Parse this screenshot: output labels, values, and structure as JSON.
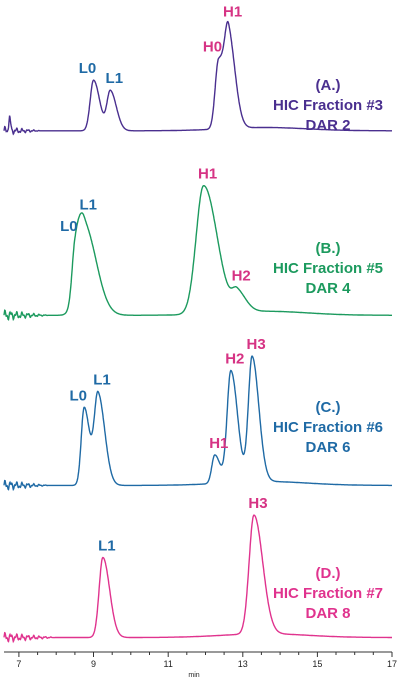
{
  "chart_data": {
    "type": "line",
    "x_axis": {
      "label": "min",
      "range": [
        6.6,
        17
      ],
      "ticks": [
        7,
        9,
        11,
        13,
        15,
        17
      ]
    },
    "series": [
      {
        "name": "(A.) HIC Fraction #3 DAR 2",
        "color": "#4a2f8f",
        "caption": [
          "(A.)",
          "HIC Fraction #3",
          "DAR 2"
        ],
        "baseline": 0.02,
        "noise_end": 7.6,
        "peaks": [
          {
            "label": "L0",
            "label_color": "#1f6aa5",
            "x": 9.0,
            "height": 0.46,
            "width": 0.09
          },
          {
            "label": "L1",
            "label_color": "#1f6aa5",
            "x": 9.45,
            "height": 0.36,
            "width": 0.09
          },
          {
            "label": "H0",
            "label_color": "#d63384",
            "x": 12.35,
            "height": 0.62,
            "width": 0.09
          },
          {
            "label": "H1",
            "label_color": "#d63384",
            "x": 12.62,
            "height": 0.8,
            "width": 0.1
          }
        ]
      },
      {
        "name": "(B.) HIC Fraction #5 DAR 4",
        "color": "#1c9a5e",
        "caption": [
          "(B.)",
          "HIC Fraction #5",
          "DAR 4"
        ],
        "baseline": 0.02,
        "noise_end": 7.8,
        "peaks": [
          {
            "label": "L0",
            "label_color": "#1f6aa5",
            "x": 8.5,
            "height": 0.32,
            "width": 0.08
          },
          {
            "label": "L1",
            "label_color": "#1f6aa5",
            "x": 8.75,
            "height": 0.66,
            "width": 0.18
          },
          {
            "label": "H1",
            "label_color": "#d63384",
            "x": 11.95,
            "height": 0.95,
            "width": 0.2
          },
          {
            "label": "H2",
            "label_color": "#d63384",
            "x": 12.85,
            "height": 0.14,
            "width": 0.13
          }
        ]
      },
      {
        "name": "(C.) HIC Fraction #6 DAR 6",
        "color": "#1f6aa5",
        "caption": [
          "(C.)",
          "HIC Fraction #6",
          "DAR 6"
        ],
        "baseline": 0.02,
        "noise_end": 7.8,
        "peaks": [
          {
            "label": "L0",
            "label_color": "#1f6aa5",
            "x": 8.75,
            "height": 0.6,
            "width": 0.08
          },
          {
            "label": "L1",
            "label_color": "#1f6aa5",
            "x": 9.12,
            "height": 0.7,
            "width": 0.1
          },
          {
            "label": "H1",
            "label_color": "#d63384",
            "x": 12.25,
            "height": 0.22,
            "width": 0.08
          },
          {
            "label": "H2",
            "label_color": "#d63384",
            "x": 12.68,
            "height": 0.86,
            "width": 0.1
          },
          {
            "label": "H3",
            "label_color": "#d63384",
            "x": 13.25,
            "height": 0.96,
            "width": 0.1
          }
        ]
      },
      {
        "name": "(D.) HIC Fraction #7 DAR 8",
        "color": "#e0338e",
        "caption": [
          "(D.)",
          "HIC Fraction #7",
          "DAR 8"
        ],
        "baseline": 0.02,
        "noise_end": 8.0,
        "peaks": [
          {
            "label": "L1",
            "label_color": "#1f6aa5",
            "x": 9.25,
            "height": 0.64,
            "width": 0.1
          },
          {
            "label": "H3",
            "label_color": "#d63384",
            "x": 13.3,
            "height": 0.95,
            "width": 0.13
          }
        ]
      }
    ],
    "grid": false,
    "legend": "none"
  }
}
